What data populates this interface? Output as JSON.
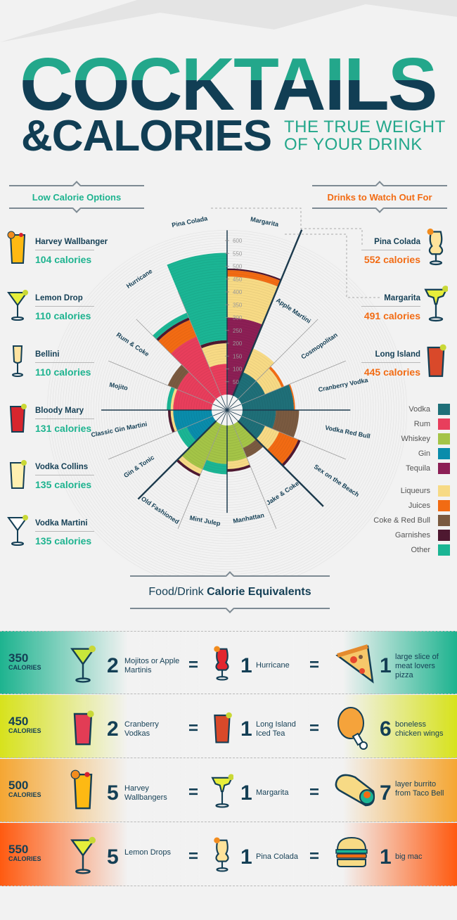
{
  "header": {
    "title_line1": "COCKTAILS",
    "title_line2": "&CALORIES",
    "tagline_line1": "THE TRUE WEIGHT",
    "tagline_line2": "OF YOUR DRINK"
  },
  "low_calorie": {
    "heading": "Low Calorie Options",
    "items": [
      {
        "name": "Harvey Wallbanger",
        "calories": "104 calories",
        "icon": "highball-orange-icon"
      },
      {
        "name": "Lemon Drop",
        "calories": "110 calories",
        "icon": "martini-lemon-icon"
      },
      {
        "name": "Bellini",
        "calories": "110 calories",
        "icon": "flute-icon"
      },
      {
        "name": "Bloody Mary",
        "calories": "131 calories",
        "icon": "bloody-mary-icon"
      },
      {
        "name": "Vodka Collins",
        "calories": "135 calories",
        "icon": "collins-icon"
      },
      {
        "name": "Vodka Martini",
        "calories": "135 calories",
        "icon": "martini-olive-icon"
      }
    ]
  },
  "watch_out": {
    "heading": "Drinks to Watch Out For",
    "items": [
      {
        "name": "Pina Colada",
        "calories": "552 calories",
        "icon": "pina-colada-icon"
      },
      {
        "name": "Margarita",
        "calories": "491 calories",
        "icon": "margarita-icon"
      },
      {
        "name": "Long Island",
        "calories": "445 calories",
        "icon": "long-island-icon"
      }
    ]
  },
  "legend": {
    "spirits": [
      {
        "label": "Vodka",
        "color": "#1f6f78"
      },
      {
        "label": "Rum",
        "color": "#e83e5c"
      },
      {
        "label": "Whiskey",
        "color": "#a4c447"
      },
      {
        "label": "Gin",
        "color": "#0a8cab"
      },
      {
        "label": "Tequila",
        "color": "#8c1f55"
      }
    ],
    "mixers": [
      {
        "label": "Liqueurs",
        "color": "#f7da85"
      },
      {
        "label": "Juices",
        "color": "#f26b13"
      },
      {
        "label": "Coke & Red Bull",
        "color": "#7a5a40"
      },
      {
        "label": "Garnishes",
        "color": "#4e1830"
      },
      {
        "label": "Other",
        "color": "#1bb594"
      }
    ]
  },
  "chart_data": {
    "type": "radial-stacked-bar",
    "title": "Cocktail calories by ingredient",
    "axis_ticks": [
      0,
      50,
      100,
      150,
      200,
      250,
      300,
      350,
      400,
      450,
      500,
      550,
      600
    ],
    "axis_unit": "calories",
    "categories": [
      "Margarita",
      "Apple Martini",
      "Cosmopolitan",
      "Cranberry Vodka",
      "Vodka Red Bull",
      "Sex on the Beach",
      "Jake & Coke",
      "Manhattan",
      "Mint Julep",
      "Old Fashioned",
      "Gin & Tonic",
      "Classic Gin Martini",
      "Mojito",
      "Rum & Coke",
      "Hurricane",
      "Pina Colada"
    ],
    "series": [
      {
        "name": "Vodka",
        "values": [
          0,
          100,
          100,
          200,
          130,
          100,
          0,
          0,
          0,
          0,
          0,
          0,
          0,
          0,
          0,
          0
        ]
      },
      {
        "name": "Rum",
        "values": [
          0,
          0,
          0,
          0,
          0,
          0,
          0,
          0,
          0,
          0,
          0,
          0,
          150,
          150,
          250,
          120
        ]
      },
      {
        "name": "Whiskey",
        "values": [
          0,
          0,
          0,
          0,
          0,
          0,
          100,
          140,
          150,
          190,
          0,
          0,
          0,
          0,
          0,
          0
        ]
      },
      {
        "name": "Gin",
        "values": [
          0,
          0,
          0,
          0,
          0,
          0,
          0,
          0,
          0,
          0,
          110,
          150,
          0,
          0,
          0,
          0
        ]
      },
      {
        "name": "Tequila",
        "values": [
          300,
          0,
          0,
          0,
          0,
          0,
          0,
          0,
          0,
          0,
          0,
          0,
          0,
          0,
          0,
          0
        ]
      },
      {
        "name": "Liqueurs",
        "values": [
          160,
          100,
          70,
          0,
          0,
          60,
          0,
          30,
          0,
          20,
          0,
          10,
          10,
          0,
          0,
          80
        ]
      },
      {
        "name": "Juices",
        "values": [
          25,
          0,
          10,
          5,
          0,
          80,
          0,
          0,
          0,
          0,
          0,
          0,
          0,
          0,
          70,
          0
        ]
      },
      {
        "name": "Coke & Red Bull",
        "values": [
          0,
          0,
          0,
          0,
          90,
          0,
          40,
          0,
          0,
          0,
          0,
          0,
          0,
          40,
          0,
          0
        ]
      },
      {
        "name": "Garnishes",
        "values": [
          6,
          0,
          0,
          0,
          0,
          10,
          0,
          10,
          0,
          10,
          0,
          10,
          0,
          0,
          10,
          12
        ]
      },
      {
        "name": "Other",
        "values": [
          0,
          0,
          0,
          0,
          0,
          0,
          0,
          0,
          40,
          0,
          40,
          0,
          15,
          0,
          20,
          340
        ]
      }
    ],
    "totals": [
      491,
      200,
      180,
      205,
      220,
      250,
      140,
      180,
      190,
      220,
      150,
      170,
      175,
      190,
      350,
      552
    ],
    "legend_position": "right"
  },
  "equivalents": {
    "heading_light": "Food/Drink ",
    "heading_bold": "Calorie Equivalents",
    "calories_label": "CALORIES",
    "rows": [
      {
        "calories": "350",
        "drink1_count": "2",
        "drink1_label": "Mojitos or Apple Martinis",
        "drink2_count": "1",
        "drink2_label": "Hurricane",
        "food_count": "1",
        "food_label": "large slice of meat lovers pizza",
        "band_color": "#1db38f"
      },
      {
        "calories": "450",
        "drink1_count": "2",
        "drink1_label": "Cranberry Vodkas",
        "drink2_count": "1",
        "drink2_label": "Long Island Iced Tea",
        "food_count": "6",
        "food_label": "boneless chicken wings",
        "band_color": "#d7e21c"
      },
      {
        "calories": "500",
        "drink1_count": "5",
        "drink1_label": "Harvey Wallbangers",
        "drink2_count": "1",
        "drink2_label": "Margarita",
        "food_count": "7",
        "food_label": "layer burrito from Taco Bell",
        "band_color": "#f5a632"
      },
      {
        "calories": "550",
        "drink1_count": "5",
        "drink1_label": "Lemon Drops",
        "drink2_count": "1",
        "drink2_label": "Pina Colada",
        "food_count": "1",
        "food_label": "big mac",
        "band_color": "#ff5a10"
      }
    ],
    "equals_sign": "="
  }
}
